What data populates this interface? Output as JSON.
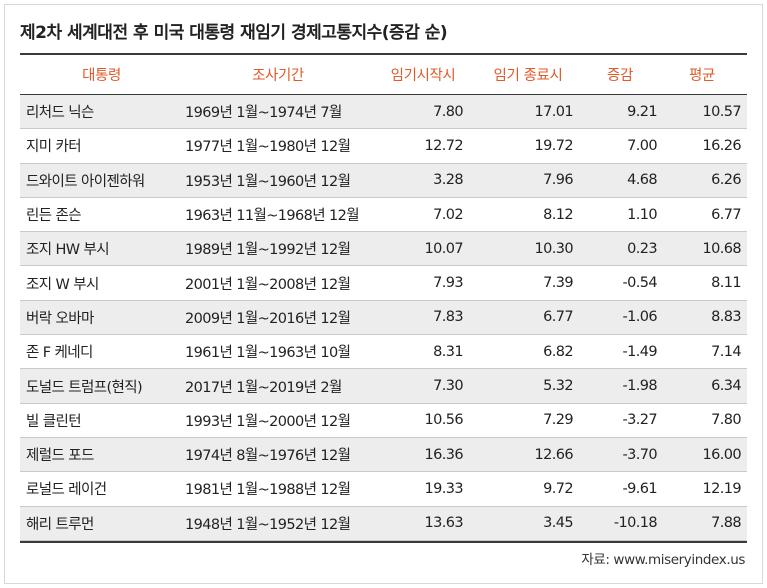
{
  "title": "제2차 세계대전 후 미국 대통령 재임기 경제고통지수(증감 순)",
  "headers": {
    "name": "대통령",
    "period": "조사기간",
    "start": "임기시작시",
    "end": "임기 종료시",
    "diff": "증감",
    "avg": "평균"
  },
  "rows": [
    {
      "name": "리처드 닉슨",
      "period": "1969년  1월~1974년  7월",
      "start": "7.80",
      "end": "17.01",
      "diff": "9.21",
      "avg": "10.57"
    },
    {
      "name": "지미 카터",
      "period": "1977년  1월~1980년 12월",
      "start": "12.72",
      "end": "19.72",
      "diff": "7.00",
      "avg": "16.26"
    },
    {
      "name": "드와이트 아이젠하워",
      "period": "1953년  1월~1960년 12월",
      "start": "3.28",
      "end": "7.96",
      "diff": "4.68",
      "avg": "6.26"
    },
    {
      "name": "린든 존슨",
      "period": "1963년 11월~1968년 12월",
      "start": "7.02",
      "end": "8.12",
      "diff": "1.10",
      "avg": "6.77"
    },
    {
      "name": "조지 HW 부시",
      "period": "1989년  1월~1992년 12월",
      "start": "10.07",
      "end": "10.30",
      "diff": "0.23",
      "avg": "10.68"
    },
    {
      "name": "조지 W 부시",
      "period": "2001년 1월~2008년 12월",
      "start": "7.93",
      "end": "7.39",
      "diff": "-0.54",
      "avg": "8.11"
    },
    {
      "name": "버락 오바마",
      "period": "2009년 1월~2016년 12월",
      "start": "7.83",
      "end": "6.77",
      "diff": "-1.06",
      "avg": "8.83"
    },
    {
      "name": "존 F 케네디",
      "period": "1961년 1월~1963년 10월",
      "start": "8.31",
      "end": "6.82",
      "diff": "-1.49",
      "avg": "7.14"
    },
    {
      "name": "도널드 트럼프(현직)",
      "period": "2017년 1월~2019년 2월",
      "start": "7.30",
      "end": "5.32",
      "diff": "-1.98",
      "avg": "6.34"
    },
    {
      "name": "빌 클린턴",
      "period": "1993년 1월~2000년 12월",
      "start": "10.56",
      "end": "7.29",
      "diff": "-3.27",
      "avg": "7.80"
    },
    {
      "name": "제럴드 포드",
      "period": "1974년 8월~1976년 12월",
      "start": "16.36",
      "end": "12.66",
      "diff": "-3.70",
      "avg": "16.00"
    },
    {
      "name": "로널드 레이건",
      "period": "1981년 1월~1988년 12월",
      "start": "19.33",
      "end": "9.72",
      "diff": "-9.61",
      "avg": "12.19"
    },
    {
      "name": "해리 트루먼",
      "period": "1948년 1월~1952년 12월",
      "start": "13.63",
      "end": "3.45",
      "diff": "-10.18",
      "avg": "7.88"
    }
  ],
  "source": "자료: www.miseryindex.us"
}
